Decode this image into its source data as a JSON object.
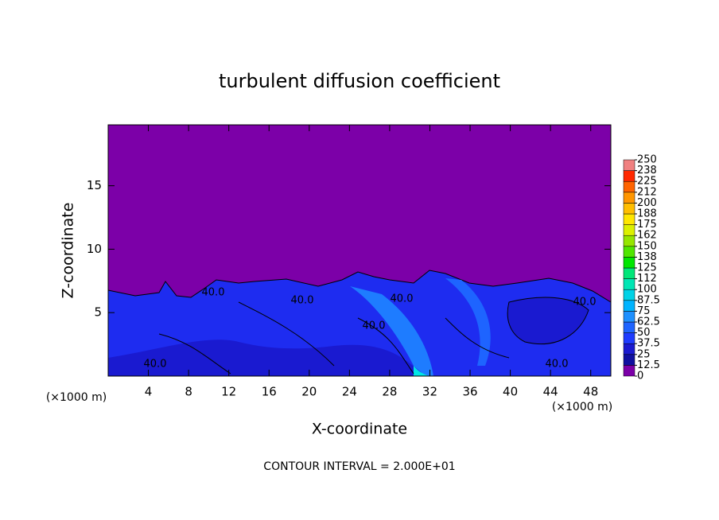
{
  "chart_data": {
    "type": "contour",
    "title": "turbulent diffusion coefficient",
    "xlabel": "X-coordinate",
    "ylabel": "Z-coordinate",
    "xunit_label": "(×1000 m)",
    "yunit_label": "(×1000 m)",
    "footer": "CONTOUR INTERVAL = 2.000E+01",
    "xlim": [
      0,
      50
    ],
    "xticks": [
      4,
      8,
      12,
      16,
      20,
      24,
      28,
      32,
      36,
      40,
      44,
      48
    ],
    "ylim": [
      0,
      19.8
    ],
    "yticks": [
      5,
      10,
      15
    ],
    "contour_labels": [
      "40.0",
      "40.0",
      "40.0",
      "40.0",
      "40.0",
      "40.0",
      "40.0"
    ],
    "colorbar": {
      "lim": [
        0,
        250
      ],
      "levels": [
        0,
        {
          "value": 12.5,
          "label": "12.5"
        },
        25,
        {
          "value": 37.5,
          "label": "37.5"
        },
        50,
        {
          "value": 62.5,
          "label": "62.5"
        },
        75,
        {
          "value": 87.5,
          "label": "87.5"
        },
        100,
        {
          "value": 112.5,
          "label": "112"
        },
        125,
        {
          "value": 137.5,
          "label": "138"
        },
        150,
        {
          "value": 162.5,
          "label": "162"
        },
        175,
        {
          "value": 187.5,
          "label": "188"
        },
        200,
        {
          "value": 212.5,
          "label": "212"
        },
        225,
        {
          "value": 237.5,
          "label": "238"
        },
        250
      ],
      "colors": [
        "#7c00a8",
        "#1010a0",
        "#1a1ad0",
        "#1e3cff",
        "#1e64ff",
        "#1e90ff",
        "#00b4ff",
        "#00d2e6",
        "#00e6b4",
        "#00e678",
        "#00e600",
        "#50e600",
        "#96e600",
        "#dcf000",
        "#ffe600",
        "#ffbe00",
        "#ff9600",
        "#ff6400",
        "#ff2800",
        "#f08080"
      ]
    }
  }
}
